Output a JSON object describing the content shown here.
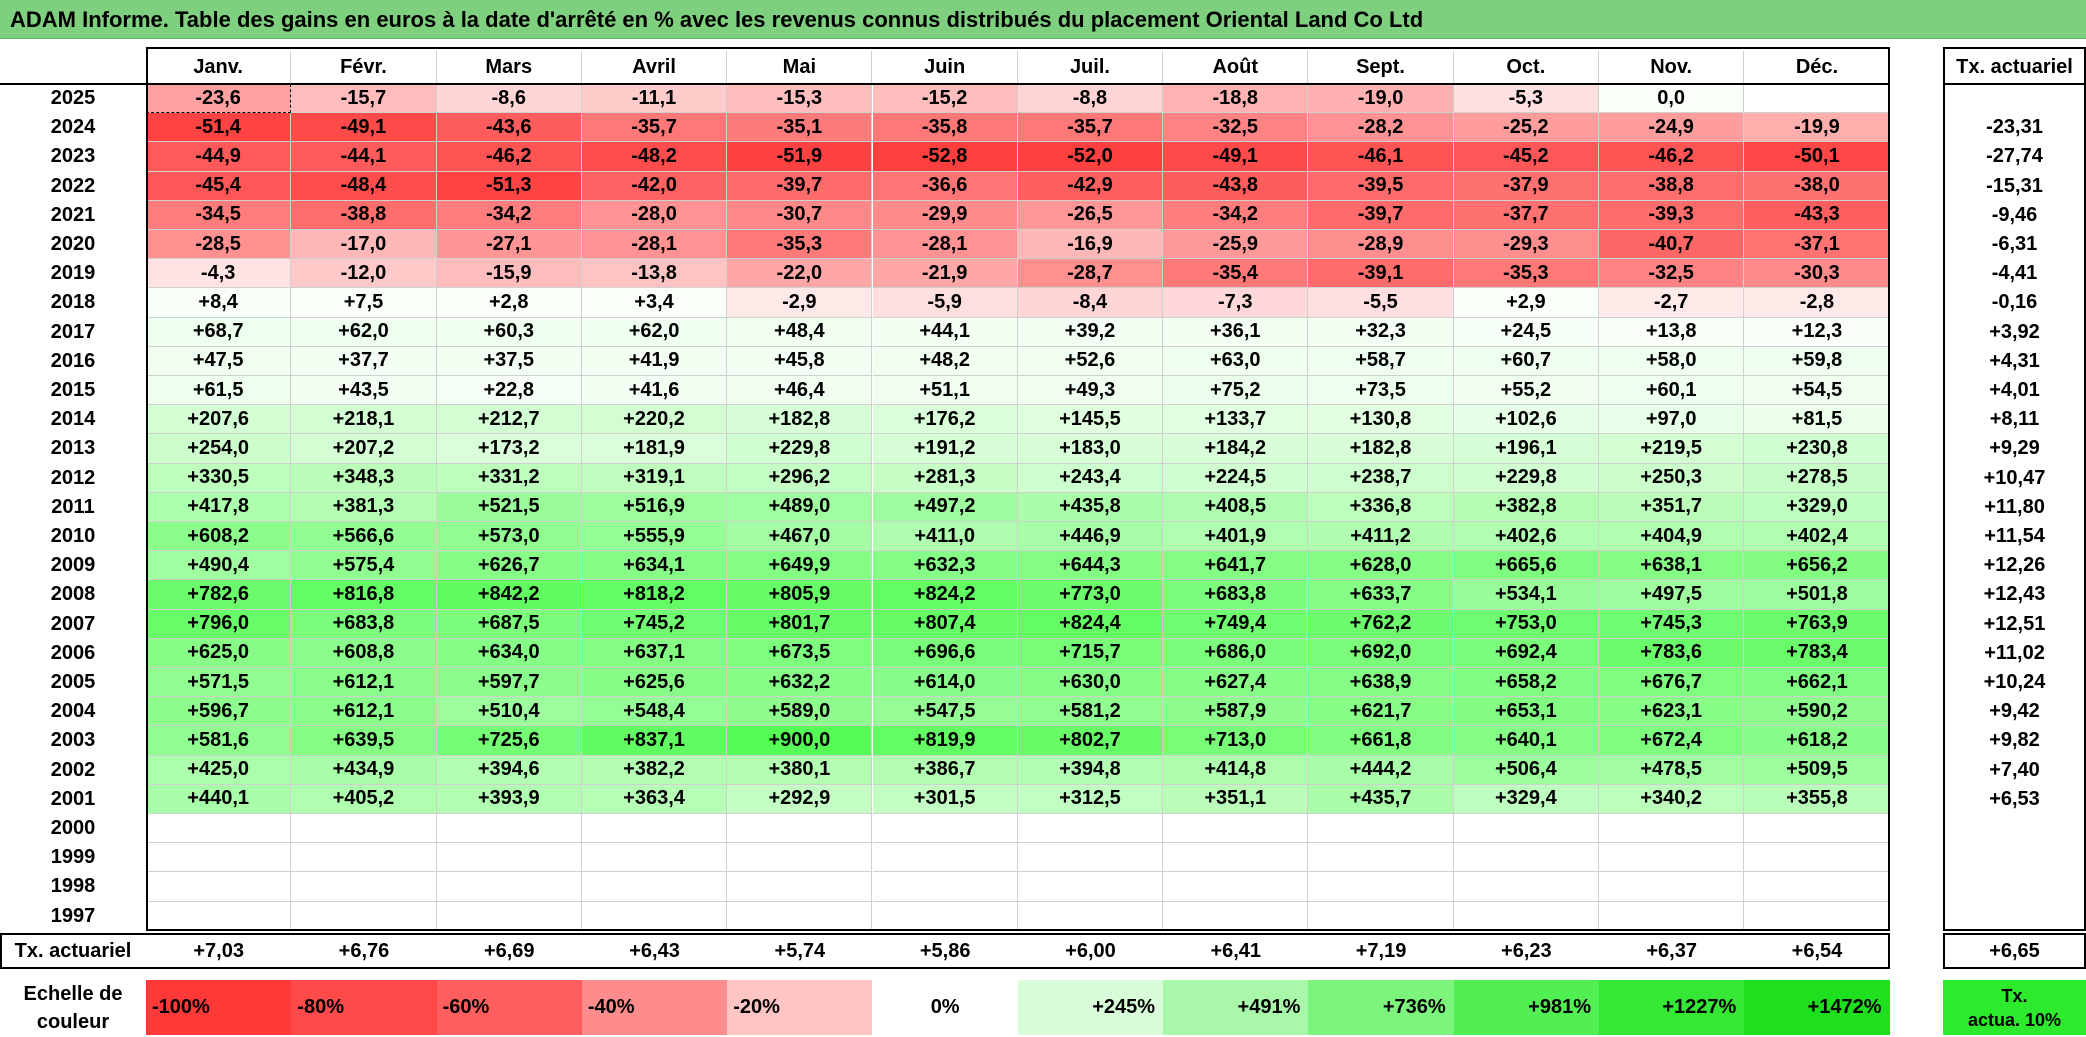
{
  "title": "ADAM Informe. Table des gains en euros à la date d'arrêté en % avec les revenus connus distribués du placement Oriental Land Co Ltd",
  "months": [
    "Janv.",
    "Févr.",
    "Mars",
    "Avril",
    "Mai",
    "Juin",
    "Juil.",
    "Août",
    "Sept.",
    "Oct.",
    "Nov.",
    "Déc."
  ],
  "annual_header": "Tx. actuariel",
  "rows": [
    {
      "year": "2025",
      "values": [
        "-23,6",
        "-15,7",
        "-8,6",
        "-11,1",
        "-15,3",
        "-15,2",
        "-8,8",
        "-18,8",
        "-19,0",
        "-5,3",
        "0,0",
        ""
      ],
      "rate": ""
    },
    {
      "year": "2024",
      "values": [
        "-51,4",
        "-49,1",
        "-43,6",
        "-35,7",
        "-35,1",
        "-35,8",
        "-35,7",
        "-32,5",
        "-28,2",
        "-25,2",
        "-24,9",
        "-19,9"
      ],
      "rate": "-23,31"
    },
    {
      "year": "2023",
      "values": [
        "-44,9",
        "-44,1",
        "-46,2",
        "-48,2",
        "-51,9",
        "-52,8",
        "-52,0",
        "-49,1",
        "-46,1",
        "-45,2",
        "-46,2",
        "-50,1"
      ],
      "rate": "-27,74"
    },
    {
      "year": "2022",
      "values": [
        "-45,4",
        "-48,4",
        "-51,3",
        "-42,0",
        "-39,7",
        "-36,6",
        "-42,9",
        "-43,8",
        "-39,5",
        "-37,9",
        "-38,8",
        "-38,0"
      ],
      "rate": "-15,31"
    },
    {
      "year": "2021",
      "values": [
        "-34,5",
        "-38,8",
        "-34,2",
        "-28,0",
        "-30,7",
        "-29,9",
        "-26,5",
        "-34,2",
        "-39,7",
        "-37,7",
        "-39,3",
        "-43,3"
      ],
      "rate": "-9,46"
    },
    {
      "year": "2020",
      "values": [
        "-28,5",
        "-17,0",
        "-27,1",
        "-28,1",
        "-35,3",
        "-28,1",
        "-16,9",
        "-25,9",
        "-28,9",
        "-29,3",
        "-40,7",
        "-37,1"
      ],
      "rate": "-6,31"
    },
    {
      "year": "2019",
      "values": [
        "-4,3",
        "-12,0",
        "-15,9",
        "-13,8",
        "-22,0",
        "-21,9",
        "-28,7",
        "-35,4",
        "-39,1",
        "-35,3",
        "-32,5",
        "-30,3"
      ],
      "rate": "-4,41"
    },
    {
      "year": "2018",
      "values": [
        "+8,4",
        "+7,5",
        "+2,8",
        "+3,4",
        "-2,9",
        "-5,9",
        "-8,4",
        "-7,3",
        "-5,5",
        "+2,9",
        "-2,7",
        "-2,8"
      ],
      "rate": "-0,16"
    },
    {
      "year": "2017",
      "values": [
        "+68,7",
        "+62,0",
        "+60,3",
        "+62,0",
        "+48,4",
        "+44,1",
        "+39,2",
        "+36,1",
        "+32,3",
        "+24,5",
        "+13,8",
        "+12,3"
      ],
      "rate": "+3,92"
    },
    {
      "year": "2016",
      "values": [
        "+47,5",
        "+37,7",
        "+37,5",
        "+41,9",
        "+45,8",
        "+48,2",
        "+52,6",
        "+63,0",
        "+58,7",
        "+60,7",
        "+58,0",
        "+59,8"
      ],
      "rate": "+4,31"
    },
    {
      "year": "2015",
      "values": [
        "+61,5",
        "+43,5",
        "+22,8",
        "+41,6",
        "+46,4",
        "+51,1",
        "+49,3",
        "+75,2",
        "+73,5",
        "+55,2",
        "+60,1",
        "+54,5"
      ],
      "rate": "+4,01"
    },
    {
      "year": "2014",
      "values": [
        "+207,6",
        "+218,1",
        "+212,7",
        "+220,2",
        "+182,8",
        "+176,2",
        "+145,5",
        "+133,7",
        "+130,8",
        "+102,6",
        "+97,0",
        "+81,5"
      ],
      "rate": "+8,11"
    },
    {
      "year": "2013",
      "values": [
        "+254,0",
        "+207,2",
        "+173,2",
        "+181,9",
        "+229,8",
        "+191,2",
        "+183,0",
        "+184,2",
        "+182,8",
        "+196,1",
        "+219,5",
        "+230,8"
      ],
      "rate": "+9,29"
    },
    {
      "year": "2012",
      "values": [
        "+330,5",
        "+348,3",
        "+331,2",
        "+319,1",
        "+296,2",
        "+281,3",
        "+243,4",
        "+224,5",
        "+238,7",
        "+229,8",
        "+250,3",
        "+278,5"
      ],
      "rate": "+10,47"
    },
    {
      "year": "2011",
      "values": [
        "+417,8",
        "+381,3",
        "+521,5",
        "+516,9",
        "+489,0",
        "+497,2",
        "+435,8",
        "+408,5",
        "+336,8",
        "+382,8",
        "+351,7",
        "+329,0"
      ],
      "rate": "+11,80"
    },
    {
      "year": "2010",
      "values": [
        "+608,2",
        "+566,6",
        "+573,0",
        "+555,9",
        "+467,0",
        "+411,0",
        "+446,9",
        "+401,9",
        "+411,2",
        "+402,6",
        "+404,9",
        "+402,4"
      ],
      "rate": "+11,54"
    },
    {
      "year": "2009",
      "values": [
        "+490,4",
        "+575,4",
        "+626,7",
        "+634,1",
        "+649,9",
        "+632,3",
        "+644,3",
        "+641,7",
        "+628,0",
        "+665,6",
        "+638,1",
        "+656,2"
      ],
      "rate": "+12,26"
    },
    {
      "year": "2008",
      "values": [
        "+782,6",
        "+816,8",
        "+842,2",
        "+818,2",
        "+805,9",
        "+824,2",
        "+773,0",
        "+683,8",
        "+633,7",
        "+534,1",
        "+497,5",
        "+501,8"
      ],
      "rate": "+12,43"
    },
    {
      "year": "2007",
      "values": [
        "+796,0",
        "+683,8",
        "+687,5",
        "+745,2",
        "+801,7",
        "+807,4",
        "+824,4",
        "+749,4",
        "+762,2",
        "+753,0",
        "+745,3",
        "+763,9"
      ],
      "rate": "+12,51"
    },
    {
      "year": "2006",
      "values": [
        "+625,0",
        "+608,8",
        "+634,0",
        "+637,1",
        "+673,5",
        "+696,6",
        "+715,7",
        "+686,0",
        "+692,0",
        "+692,4",
        "+783,6",
        "+783,4"
      ],
      "rate": "+11,02"
    },
    {
      "year": "2005",
      "values": [
        "+571,5",
        "+612,1",
        "+597,7",
        "+625,6",
        "+632,2",
        "+614,0",
        "+630,0",
        "+627,4",
        "+638,9",
        "+658,2",
        "+676,7",
        "+662,1"
      ],
      "rate": "+10,24"
    },
    {
      "year": "2004",
      "values": [
        "+596,7",
        "+612,1",
        "+510,4",
        "+548,4",
        "+589,0",
        "+547,5",
        "+581,2",
        "+587,9",
        "+621,7",
        "+653,1",
        "+623,1",
        "+590,2"
      ],
      "rate": "+9,42"
    },
    {
      "year": "2003",
      "values": [
        "+581,6",
        "+639,5",
        "+725,6",
        "+837,1",
        "+900,0",
        "+819,9",
        "+802,7",
        "+713,0",
        "+661,8",
        "+640,1",
        "+672,4",
        "+618,2"
      ],
      "rate": "+9,82"
    },
    {
      "year": "2002",
      "values": [
        "+425,0",
        "+434,9",
        "+394,6",
        "+382,2",
        "+380,1",
        "+386,7",
        "+394,8",
        "+414,8",
        "+444,2",
        "+506,4",
        "+478,5",
        "+509,5"
      ],
      "rate": "+7,40"
    },
    {
      "year": "2001",
      "values": [
        "+440,1",
        "+405,2",
        "+393,9",
        "+363,4",
        "+292,9",
        "+301,5",
        "+312,5",
        "+351,1",
        "+435,7",
        "+329,4",
        "+340,2",
        "+355,8"
      ],
      "rate": "+6,53"
    },
    {
      "year": "2000",
      "values": [
        "",
        "",
        "",
        "",
        "",
        "",
        "",
        "",
        "",
        "",
        "",
        ""
      ],
      "rate": ""
    },
    {
      "year": "1999",
      "values": [
        "",
        "",
        "",
        "",
        "",
        "",
        "",
        "",
        "",
        "",
        "",
        ""
      ],
      "rate": ""
    },
    {
      "year": "1998",
      "values": [
        "",
        "",
        "",
        "",
        "",
        "",
        "",
        "",
        "",
        "",
        "",
        ""
      ],
      "rate": ""
    },
    {
      "year": "1997",
      "values": [
        "",
        "",
        "",
        "",
        "",
        "",
        "",
        "",
        "",
        "",
        "",
        ""
      ],
      "rate": ""
    }
  ],
  "footer": {
    "label": "Tx. actuariel",
    "values": [
      "+7,03",
      "+6,76",
      "+6,69",
      "+6,43",
      "+5,74",
      "+5,86",
      "+6,00",
      "+6,41",
      "+7,19",
      "+6,23",
      "+6,37",
      "+6,54"
    ],
    "rate": "+6,65"
  },
  "scale": {
    "label_line1": "Echelle de",
    "label_line2": "couleur",
    "steps": [
      {
        "text": "-100%",
        "color": "#ff3838"
      },
      {
        "text": "-80%",
        "color": "#ff4a4a"
      },
      {
        "text": "-60%",
        "color": "#ff5e5e"
      },
      {
        "text": "-40%",
        "color": "#ff8c8c"
      },
      {
        "text": "-20%",
        "color": "#ffc4c4"
      },
      {
        "text": "0%",
        "color": "#ffffff"
      },
      {
        "text": "+245%",
        "color": "#d9fdd9"
      },
      {
        "text": "+491%",
        "color": "#a9f8a9"
      },
      {
        "text": "+736%",
        "color": "#7df57d"
      },
      {
        "text": "+981%",
        "color": "#52ef52"
      },
      {
        "text": "+1227%",
        "color": "#35e835"
      },
      {
        "text": "+1472%",
        "color": "#1fe01f"
      }
    ],
    "tx_line1": "Tx.",
    "tx_line2": "actua. 10%",
    "tx_color": "#2dea2d"
  },
  "colors": {
    "title_bg": "#7ed07e",
    "negative": "#ff3838",
    "positive": "#1fe01f"
  }
}
